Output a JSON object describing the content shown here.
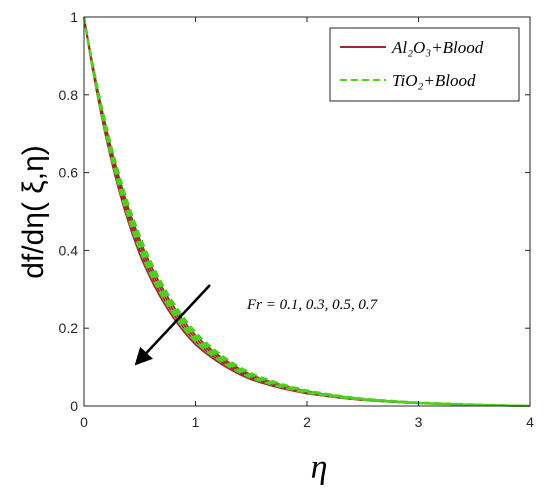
{
  "chart_data": {
    "type": "line",
    "xlabel": "η",
    "ylabel": "df/dη( ξ,η)",
    "xlim": [
      0,
      4
    ],
    "ylim": [
      0,
      1
    ],
    "x_ticks": [
      "0",
      "1",
      "2",
      "3",
      "4"
    ],
    "y_ticks": [
      "0",
      "0.2",
      "0.4",
      "0.6",
      "0.8",
      "1"
    ],
    "grid": false,
    "legend_position": "top-right",
    "legend": [
      {
        "text": "Al₂O₃+Blood",
        "style": "solid",
        "color": "#a0282d"
      },
      {
        "text": "TiO₂+Blood",
        "style": "dashed",
        "color": "#4fd01f"
      }
    ],
    "annotation": "Fr = 0.1, 0.3, 0.5, 0.7",
    "parameter_values": [
      0.1,
      0.3,
      0.5,
      0.7
    ],
    "x": [
      0,
      0.5,
      1,
      1.5,
      2,
      2.5,
      3,
      3.5,
      4
    ],
    "series": [
      {
        "fluid": "Al2O3+Blood",
        "Fr": 0.1,
        "style": "solid",
        "values": [
          1,
          0.428,
          0.182,
          0.08,
          0.038,
          0.018,
          0.008,
          0.003,
          0
        ]
      },
      {
        "fluid": "Al2O3+Blood",
        "Fr": 0.3,
        "style": "solid",
        "values": [
          1,
          0.415,
          0.174,
          0.076,
          0.036,
          0.017,
          0.008,
          0.003,
          0
        ]
      },
      {
        "fluid": "Al2O3+Blood",
        "Fr": 0.5,
        "style": "solid",
        "values": [
          1,
          0.402,
          0.166,
          0.072,
          0.034,
          0.016,
          0.007,
          0.003,
          0
        ]
      },
      {
        "fluid": "Al2O3+Blood",
        "Fr": 0.7,
        "style": "solid",
        "values": [
          1,
          0.39,
          0.158,
          0.068,
          0.032,
          0.015,
          0.007,
          0.003,
          0
        ]
      },
      {
        "fluid": "TiO2+Blood",
        "Fr": 0.1,
        "style": "dashed",
        "values": [
          1,
          0.438,
          0.19,
          0.084,
          0.04,
          0.019,
          0.009,
          0.004,
          0
        ]
      },
      {
        "fluid": "TiO2+Blood",
        "Fr": 0.3,
        "style": "dashed",
        "values": [
          1,
          0.425,
          0.181,
          0.08,
          0.038,
          0.018,
          0.008,
          0.003,
          0
        ]
      },
      {
        "fluid": "TiO2+Blood",
        "Fr": 0.5,
        "style": "dashed",
        "values": [
          1,
          0.412,
          0.173,
          0.076,
          0.036,
          0.017,
          0.008,
          0.003,
          0
        ]
      },
      {
        "fluid": "TiO2+Blood",
        "Fr": 0.7,
        "style": "dashed",
        "values": [
          1,
          0.4,
          0.165,
          0.072,
          0.034,
          0.016,
          0.007,
          0.003,
          0
        ]
      }
    ]
  }
}
